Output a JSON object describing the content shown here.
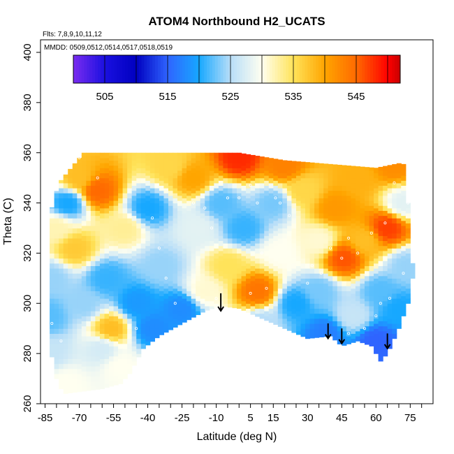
{
  "chart_data": {
    "type": "heatmap",
    "title": "ATOM4 Northbound H2_UCATS",
    "flights_note": "Flts: 7,8,9,10,11,12",
    "dates_note": "MMDD: 0509,0512,0514,0517,0518,0519",
    "xlabel": "Latitude (deg N)",
    "ylabel": "Theta (C)",
    "xlim": [
      -87,
      85
    ],
    "ylim": [
      260,
      405
    ],
    "x_ticks": [
      -85,
      -70,
      -55,
      -40,
      -25,
      -10,
      5,
      15,
      30,
      45,
      60,
      75
    ],
    "y_ticks": [
      260,
      280,
      300,
      320,
      340,
      360,
      380,
      400
    ],
    "colorbar": {
      "range": [
        500,
        552
      ],
      "tick_values": [
        505,
        515,
        525,
        535,
        545
      ],
      "bin_edges": [
        500,
        505,
        510,
        515,
        520,
        525,
        530,
        535,
        540,
        545,
        550,
        552
      ],
      "colors": [
        "#7a2cf0",
        "#1a10e0",
        "#0000c0",
        "#2f64ff",
        "#17a8ff",
        "#b8def8",
        "#fffff0",
        "#ffe35a",
        "#ffa500",
        "#ff6a00",
        "#ff0000",
        "#c80000",
        "#aa2222"
      ]
    },
    "field_samples": [
      {
        "x": -84,
        "y": 280,
        "v": 526
      },
      {
        "x": -84,
        "y": 295,
        "v": 522
      },
      {
        "x": -82,
        "y": 310,
        "v": 524
      },
      {
        "x": -80,
        "y": 330,
        "v": 532
      },
      {
        "x": -76,
        "y": 268,
        "v": 530
      },
      {
        "x": -75,
        "y": 340,
        "v": 520
      },
      {
        "x": -72,
        "y": 322,
        "v": 537
      },
      {
        "x": -70,
        "y": 350,
        "v": 538
      },
      {
        "x": -68,
        "y": 300,
        "v": 524
      },
      {
        "x": -62,
        "y": 345,
        "v": 545
      },
      {
        "x": -58,
        "y": 310,
        "v": 521
      },
      {
        "x": -56,
        "y": 290,
        "v": 538
      },
      {
        "x": -52,
        "y": 275,
        "v": 530
      },
      {
        "x": -50,
        "y": 330,
        "v": 533
      },
      {
        "x": -45,
        "y": 300,
        "v": 519
      },
      {
        "x": -40,
        "y": 338,
        "v": 520
      },
      {
        "x": -38,
        "y": 290,
        "v": 518
      },
      {
        "x": -34,
        "y": 315,
        "v": 524
      },
      {
        "x": -25,
        "y": 298,
        "v": 518
      },
      {
        "x": -20,
        "y": 350,
        "v": 540
      },
      {
        "x": -18,
        "y": 330,
        "v": 528
      },
      {
        "x": -15,
        "y": 305,
        "v": 531
      },
      {
        "x": -8,
        "y": 340,
        "v": 522
      },
      {
        "x": -5,
        "y": 315,
        "v": 535
      },
      {
        "x": 0,
        "y": 358,
        "v": 548
      },
      {
        "x": 2,
        "y": 330,
        "v": 521
      },
      {
        "x": 8,
        "y": 305,
        "v": 544
      },
      {
        "x": 10,
        "y": 292,
        "v": 525
      },
      {
        "x": 15,
        "y": 340,
        "v": 523
      },
      {
        "x": 18,
        "y": 320,
        "v": 530
      },
      {
        "x": 25,
        "y": 300,
        "v": 520
      },
      {
        "x": 28,
        "y": 345,
        "v": 536
      },
      {
        "x": 35,
        "y": 325,
        "v": 531
      },
      {
        "x": 38,
        "y": 288,
        "v": 517
      },
      {
        "x": 42,
        "y": 338,
        "v": 541
      },
      {
        "x": 46,
        "y": 318,
        "v": 546
      },
      {
        "x": 50,
        "y": 295,
        "v": 526
      },
      {
        "x": 52,
        "y": 350,
        "v": 539
      },
      {
        "x": 55,
        "y": 325,
        "v": 538
      },
      {
        "x": 60,
        "y": 285,
        "v": 515
      },
      {
        "x": 62,
        "y": 305,
        "v": 522
      },
      {
        "x": 65,
        "y": 330,
        "v": 547
      },
      {
        "x": 68,
        "y": 355,
        "v": 542
      },
      {
        "x": 70,
        "y": 298,
        "v": 520
      },
      {
        "x": 72,
        "y": 340,
        "v": 528
      },
      {
        "x": 73,
        "y": 315,
        "v": 524
      },
      {
        "x": 20,
        "y": 355,
        "v": 543
      },
      {
        "x": -30,
        "y": 355,
        "v": 536
      },
      {
        "x": 35,
        "y": 305,
        "v": 523
      },
      {
        "x": -60,
        "y": 282,
        "v": 527
      }
    ],
    "coverage": {
      "top": [
        [
          -83,
          335
        ],
        [
          -79,
          348
        ],
        [
          -70,
          358
        ],
        [
          -68,
          360
        ],
        [
          0,
          360
        ],
        [
          20,
          357
        ],
        [
          60,
          354
        ],
        [
          71,
          356
        ],
        [
          73,
          355
        ],
        [
          75,
          325
        ],
        [
          76,
          316
        ]
      ],
      "bottom": [
        [
          -83,
          283
        ],
        [
          -80,
          270
        ],
        [
          -77,
          264
        ],
        [
          -60,
          266
        ],
        [
          -52,
          268
        ],
        [
          -48,
          272
        ],
        [
          -42,
          282
        ],
        [
          -35,
          287
        ],
        [
          -25,
          292
        ],
        [
          -15,
          297
        ],
        [
          -8,
          299
        ],
        [
          0,
          298
        ],
        [
          15,
          292
        ],
        [
          30,
          286
        ],
        [
          40,
          287
        ],
        [
          45,
          283
        ],
        [
          52,
          285
        ],
        [
          58,
          283
        ],
        [
          62,
          277
        ],
        [
          65,
          280
        ],
        [
          70,
          290
        ],
        [
          74,
          300
        ],
        [
          76,
          310
        ]
      ]
    },
    "sample_points": [
      [
        -70,
        358
      ],
      [
        -62,
        350
      ],
      [
        -38,
        334
      ],
      [
        -35,
        322
      ],
      [
        -32,
        310
      ],
      [
        -28,
        300
      ],
      [
        -20,
        340
      ],
      [
        -15,
        338
      ],
      [
        -12,
        330
      ],
      [
        -5,
        342
      ],
      [
        0,
        342
      ],
      [
        5,
        347
      ],
      [
        8,
        340
      ],
      [
        16,
        342
      ],
      [
        18,
        340
      ],
      [
        22,
        335
      ],
      [
        32,
        315
      ],
      [
        36,
        312
      ],
      [
        40,
        322
      ],
      [
        45,
        318
      ],
      [
        48,
        326
      ],
      [
        52,
        320
      ],
      [
        58,
        328
      ],
      [
        64,
        332
      ],
      [
        68,
        348
      ],
      [
        70,
        360
      ],
      [
        66,
        302
      ],
      [
        62,
        300
      ],
      [
        60,
        295
      ],
      [
        55,
        290
      ],
      [
        48,
        288
      ],
      [
        30,
        308
      ],
      [
        12,
        306
      ],
      [
        5,
        304
      ],
      [
        -10,
        302
      ],
      [
        -45,
        290
      ],
      [
        -57,
        285
      ],
      [
        -78,
        285
      ],
      [
        -82,
        292
      ],
      [
        72,
        312
      ],
      [
        74,
        340
      ],
      [
        10,
        320
      ]
    ],
    "arrows": [
      {
        "x": -8,
        "y_top": 304,
        "y_bottom": 297
      },
      {
        "x": 39,
        "y_top": 292,
        "y_bottom": 286
      },
      {
        "x": 45,
        "y_top": 290,
        "y_bottom": 284
      },
      {
        "x": 65,
        "y_top": 288,
        "y_bottom": 282
      }
    ]
  }
}
